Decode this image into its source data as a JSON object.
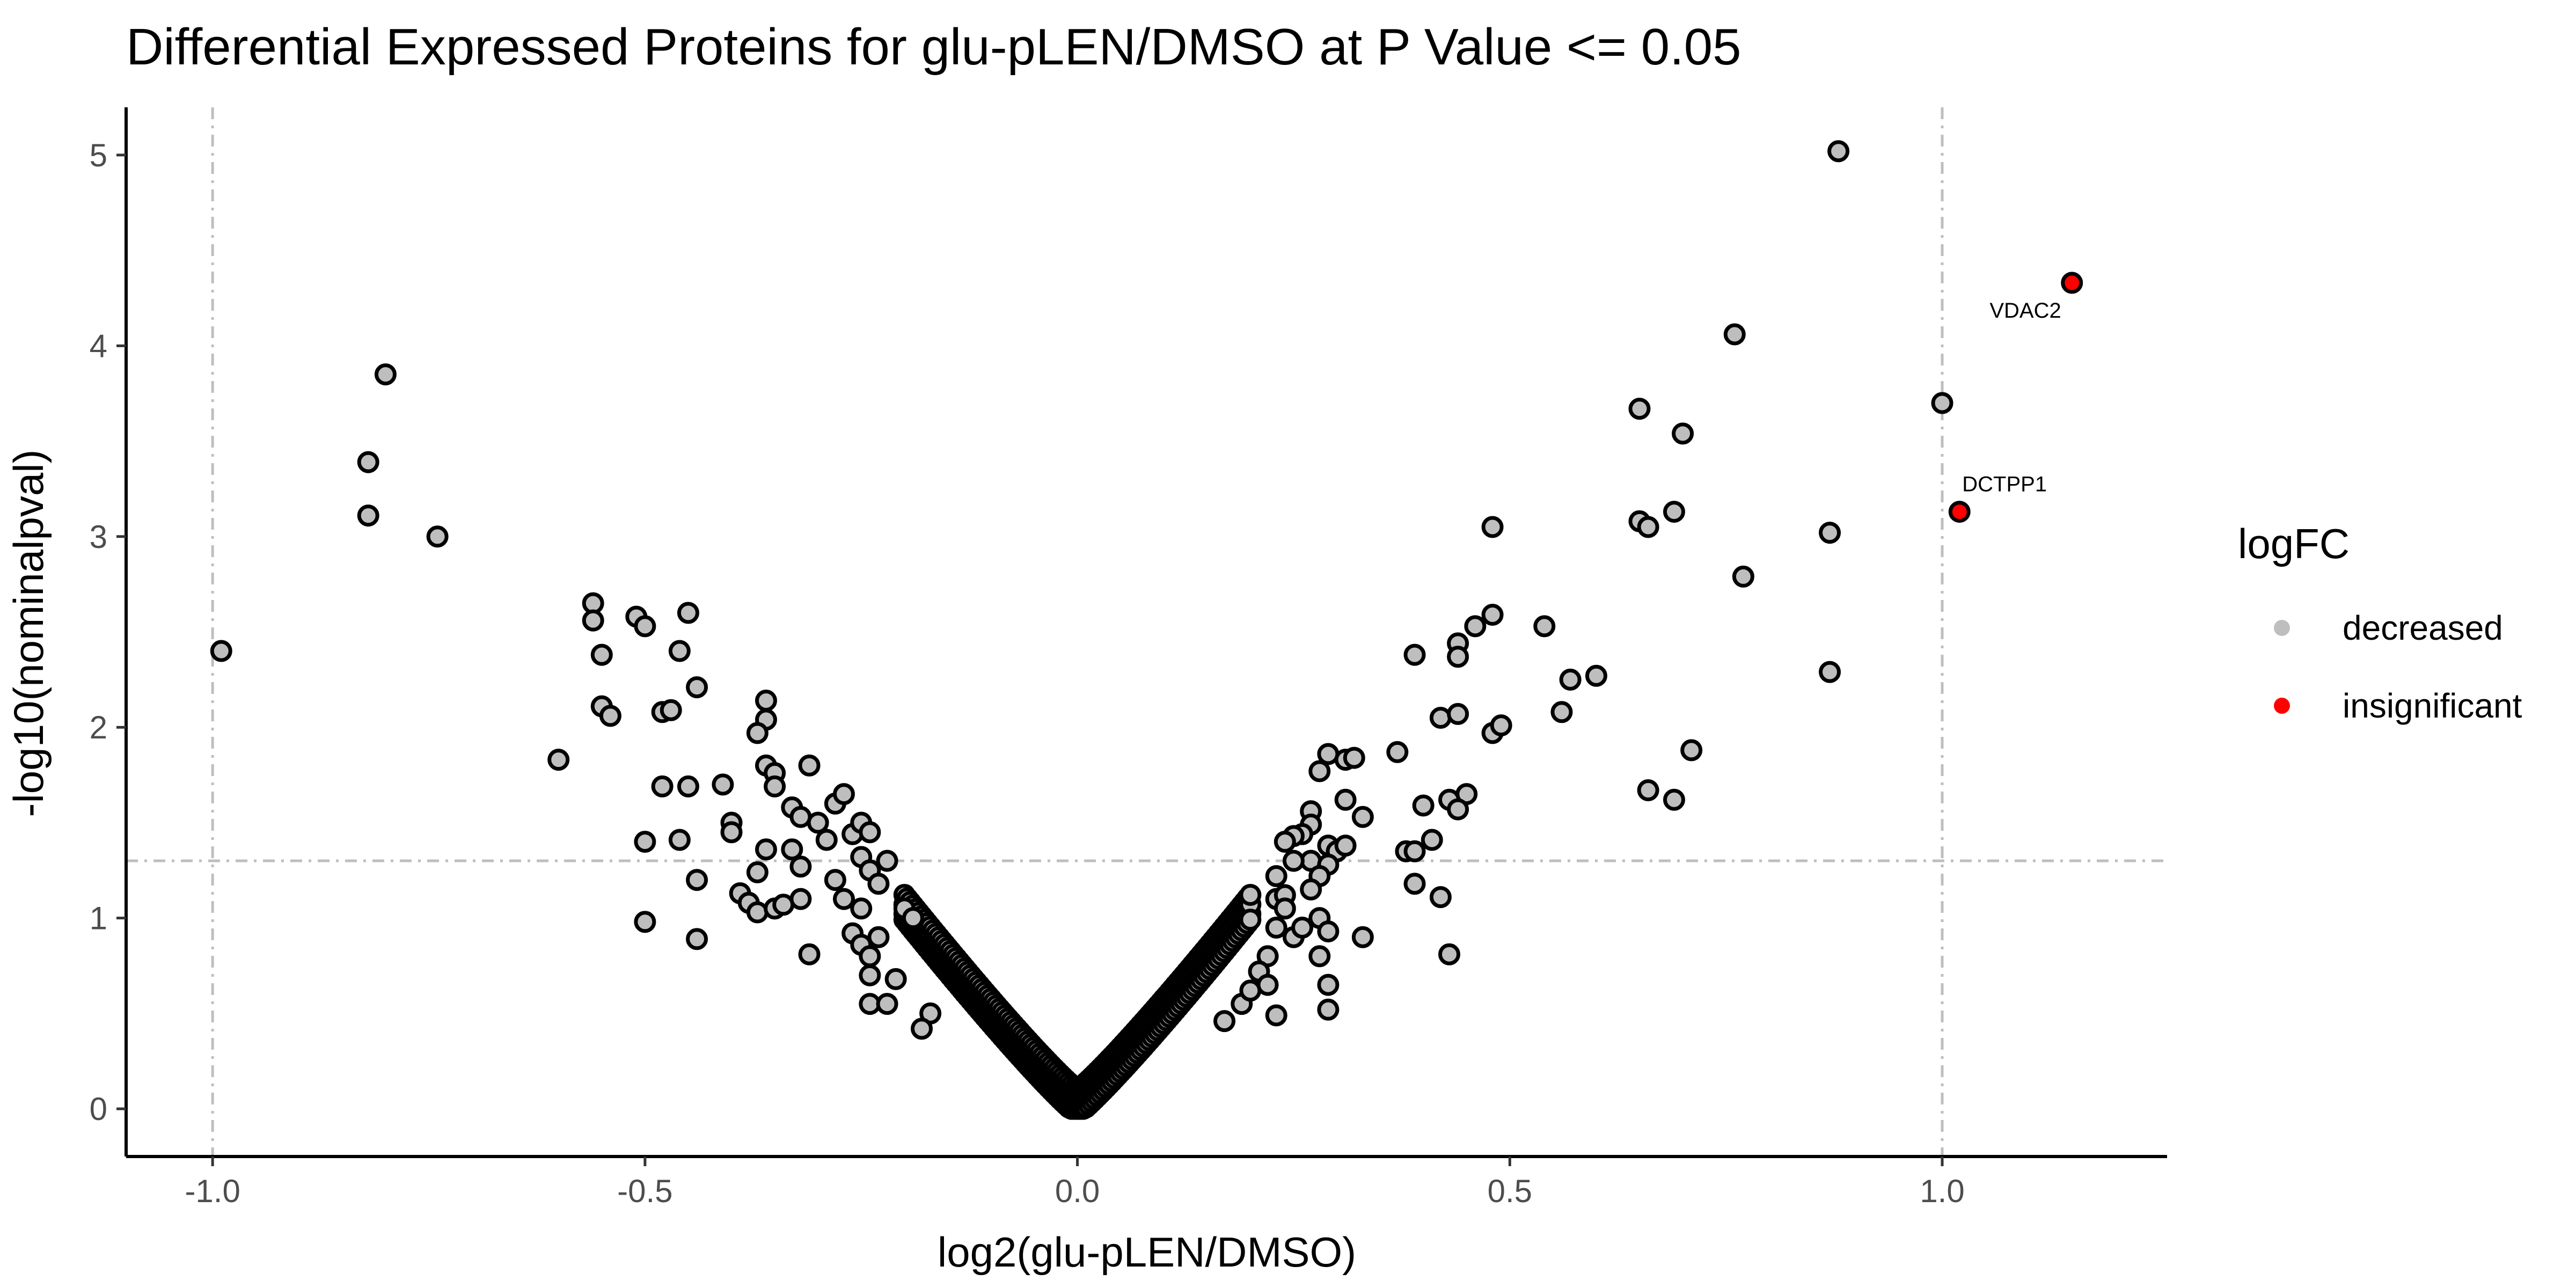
{
  "chart_data": {
    "type": "scatter",
    "title": "Differential Expressed Proteins for glu-pLEN/DMSO at P Value <= 0.05",
    "xlabel": "log2(glu-pLEN/DMSO)",
    "ylabel": "-log10(nominalpval)",
    "xlim": [
      -1.1,
      1.26
    ],
    "ylim": [
      -0.25,
      5.25
    ],
    "x_ticks": [
      -1.0,
      -0.5,
      0.0,
      0.5,
      1.0
    ],
    "x_tick_labels": [
      "-1.0",
      "-0.5",
      "0.0",
      "0.5",
      "1.0"
    ],
    "y_ticks": [
      0,
      1,
      2,
      3,
      4,
      5
    ],
    "y_tick_labels": [
      "0",
      "1",
      "2",
      "3",
      "4",
      "5"
    ],
    "grid": false,
    "threshold_lines": {
      "x": [
        -1.0,
        1.0
      ],
      "y": [
        1.3
      ]
    },
    "legend": {
      "title": "logFC",
      "position": "right",
      "entries": [
        {
          "label": "decreased",
          "color": "#bebebe"
        },
        {
          "label": "insignificant",
          "color": "#ff0000"
        }
      ]
    },
    "series": [
      {
        "color": "#bebebe",
        "points": [
          [
            0.88,
            5.02
          ],
          [
            0.76,
            4.06
          ],
          [
            1.0,
            3.7
          ],
          [
            0.65,
            3.67
          ],
          [
            0.7,
            3.54
          ],
          [
            0.65,
            3.08
          ],
          [
            0.66,
            3.05
          ],
          [
            0.69,
            3.13
          ],
          [
            0.87,
            3.02
          ],
          [
            0.77,
            2.79
          ],
          [
            0.87,
            2.29
          ],
          [
            0.48,
            3.05
          ],
          [
            0.54,
            2.53
          ],
          [
            0.6,
            2.27
          ],
          [
            0.57,
            2.25
          ],
          [
            0.56,
            2.08
          ],
          [
            0.48,
            2.59
          ],
          [
            0.46,
            2.53
          ],
          [
            0.44,
            2.44
          ],
          [
            0.44,
            2.37
          ],
          [
            0.39,
            2.38
          ],
          [
            0.42,
            2.05
          ],
          [
            0.44,
            2.07
          ],
          [
            0.48,
            1.97
          ],
          [
            0.49,
            2.01
          ],
          [
            0.45,
            1.65
          ],
          [
            0.43,
            1.62
          ],
          [
            0.44,
            1.57
          ],
          [
            0.4,
            1.59
          ],
          [
            0.41,
            1.41
          ],
          [
            0.37,
            1.87
          ],
          [
            0.38,
            1.35
          ],
          [
            0.39,
            1.35
          ],
          [
            0.39,
            1.18
          ],
          [
            0.42,
            1.11
          ],
          [
            0.43,
            0.81
          ],
          [
            0.71,
            1.88
          ],
          [
            0.66,
            1.67
          ],
          [
            0.69,
            1.62
          ],
          [
            -0.8,
            3.85
          ],
          [
            -0.82,
            3.39
          ],
          [
            -0.82,
            3.11
          ],
          [
            -0.74,
            3.0
          ],
          [
            -0.99,
            2.4
          ],
          [
            -0.6,
            1.83
          ],
          [
            -0.56,
            2.65
          ],
          [
            -0.56,
            2.56
          ],
          [
            -0.55,
            2.38
          ],
          [
            -0.55,
            2.11
          ],
          [
            -0.54,
            2.06
          ],
          [
            -0.51,
            2.58
          ],
          [
            -0.5,
            2.53
          ],
          [
            -0.48,
            2.08
          ],
          [
            -0.47,
            2.09
          ],
          [
            -0.46,
            2.4
          ],
          [
            -0.45,
            2.6
          ],
          [
            -0.44,
            2.21
          ],
          [
            -0.48,
            1.69
          ],
          [
            -0.45,
            1.69
          ],
          [
            -0.41,
            1.7
          ],
          [
            -0.4,
            1.5
          ],
          [
            -0.4,
            1.45
          ],
          [
            -0.5,
            1.4
          ],
          [
            -0.46,
            1.41
          ],
          [
            -0.44,
            1.2
          ],
          [
            -0.5,
            0.98
          ],
          [
            -0.44,
            0.89
          ],
          [
            -0.36,
            2.14
          ],
          [
            -0.36,
            2.04
          ],
          [
            -0.37,
            1.97
          ],
          [
            -0.36,
            1.8
          ],
          [
            -0.35,
            1.76
          ],
          [
            -0.35,
            1.69
          ],
          [
            -0.39,
            1.13
          ],
          [
            -0.38,
            1.08
          ],
          [
            -0.37,
            1.24
          ],
          [
            -0.36,
            1.36
          ],
          [
            -0.37,
            1.03
          ],
          [
            -0.35,
            1.05
          ],
          [
            -0.34,
            1.07
          ],
          [
            -0.33,
            1.58
          ],
          [
            -0.32,
            1.53
          ],
          [
            -0.31,
            1.8
          ],
          [
            -0.33,
            1.36
          ],
          [
            -0.32,
            1.27
          ],
          [
            -0.32,
            1.1
          ],
          [
            -0.31,
            0.81
          ],
          [
            -0.3,
            1.5
          ],
          [
            -0.29,
            1.41
          ],
          [
            -0.28,
            1.6
          ],
          [
            -0.27,
            1.65
          ],
          [
            -0.28,
            1.2
          ],
          [
            -0.27,
            1.1
          ],
          [
            -0.26,
            1.44
          ],
          [
            -0.25,
            1.5
          ],
          [
            -0.24,
            1.45
          ],
          [
            -0.25,
            1.32
          ],
          [
            -0.25,
            1.05
          ],
          [
            -0.24,
            1.25
          ],
          [
            -0.23,
            1.18
          ],
          [
            -0.22,
            1.3
          ],
          [
            -0.26,
            0.92
          ],
          [
            -0.25,
            0.86
          ],
          [
            -0.24,
            0.8
          ],
          [
            -0.23,
            0.9
          ],
          [
            -0.24,
            0.7
          ],
          [
            -0.24,
            0.55
          ],
          [
            -0.22,
            0.55
          ],
          [
            -0.21,
            0.68
          ],
          [
            -0.2,
            1.05
          ],
          [
            -0.19,
            1.0
          ],
          [
            -0.17,
            0.5
          ],
          [
            -0.18,
            0.42
          ],
          [
            0.29,
            1.86
          ],
          [
            0.31,
            1.83
          ],
          [
            0.32,
            1.84
          ],
          [
            0.28,
            1.77
          ],
          [
            0.27,
            1.56
          ],
          [
            0.27,
            1.49
          ],
          [
            0.26,
            1.44
          ],
          [
            0.31,
            1.62
          ],
          [
            0.33,
            1.53
          ],
          [
            0.25,
            1.43
          ],
          [
            0.24,
            1.4
          ],
          [
            0.29,
            1.38
          ],
          [
            0.3,
            1.35
          ],
          [
            0.31,
            1.38
          ],
          [
            0.27,
            1.3
          ],
          [
            0.29,
            1.28
          ],
          [
            0.23,
            1.22
          ],
          [
            0.23,
            1.1
          ],
          [
            0.25,
            1.3
          ],
          [
            0.24,
            1.12
          ],
          [
            0.24,
            1.05
          ],
          [
            0.28,
            1.22
          ],
          [
            0.27,
            1.15
          ],
          [
            0.28,
            1.0
          ],
          [
            0.29,
            0.93
          ],
          [
            0.33,
            0.9
          ],
          [
            0.28,
            0.8
          ],
          [
            0.29,
            0.65
          ],
          [
            0.29,
            0.52
          ],
          [
            0.23,
            0.95
          ],
          [
            0.22,
            0.8
          ],
          [
            0.21,
            0.72
          ],
          [
            0.22,
            0.65
          ],
          [
            0.19,
            0.55
          ],
          [
            0.23,
            0.49
          ],
          [
            0.17,
            0.46
          ],
          [
            0.2,
            0.62
          ],
          [
            0.25,
            0.9
          ],
          [
            0.26,
            0.95
          ]
        ]
      },
      {
        "color": "#ff0000",
        "points": [
          [
            1.15,
            4.33
          ],
          [
            1.02,
            3.13
          ]
        ],
        "labels": [
          "VDAC2",
          "DCTPP1"
        ]
      }
    ]
  }
}
